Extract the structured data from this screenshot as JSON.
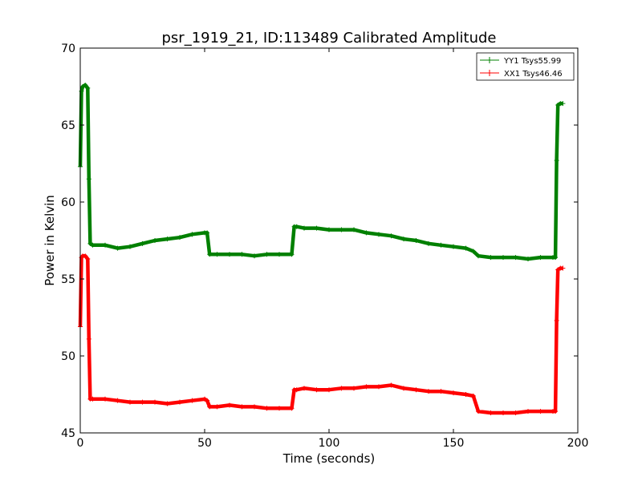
{
  "chart_data": {
    "type": "line",
    "title": "psr_1919_21, ID:113489 Calibrated Amplitude",
    "xlabel": "Time (seconds)",
    "ylabel": "Power in Kelvin",
    "xlim": [
      0,
      200
    ],
    "ylim": [
      45,
      70
    ],
    "xticks": [
      0,
      50,
      100,
      150,
      200
    ],
    "yticks": [
      45,
      50,
      55,
      60,
      65,
      70
    ],
    "grid": false,
    "legend_position": "top-right",
    "series": [
      {
        "name": "YY1 Tsys55.99",
        "color": "#008000",
        "x": [
          0,
          0.5,
          1,
          2,
          3,
          3.5,
          4,
          5,
          10,
          15,
          20,
          25,
          30,
          35,
          40,
          45,
          50,
          51,
          52,
          55,
          60,
          65,
          70,
          75,
          80,
          85,
          86,
          87,
          90,
          95,
          100,
          105,
          110,
          115,
          120,
          125,
          130,
          135,
          140,
          145,
          150,
          155,
          158,
          160,
          165,
          170,
          175,
          180,
          185,
          190,
          191,
          191.5,
          192,
          193,
          194
        ],
        "y": [
          62.3,
          67.2,
          67.5,
          67.6,
          67.4,
          61.5,
          57.3,
          57.2,
          57.2,
          57.0,
          57.1,
          57.3,
          57.5,
          57.6,
          57.7,
          57.9,
          58.0,
          58.0,
          56.6,
          56.6,
          56.6,
          56.6,
          56.5,
          56.6,
          56.6,
          56.6,
          58.4,
          58.4,
          58.3,
          58.3,
          58.2,
          58.2,
          58.2,
          58.0,
          57.9,
          57.8,
          57.6,
          57.5,
          57.3,
          57.2,
          57.1,
          57.0,
          56.8,
          56.5,
          56.4,
          56.4,
          56.4,
          56.3,
          56.4,
          56.4,
          56.4,
          62.7,
          66.3,
          66.4,
          66.4
        ]
      },
      {
        "name": "XX1 Tsys46.46",
        "color": "#ff0000",
        "x": [
          0,
          0.5,
          1,
          2,
          3,
          3.5,
          4,
          5,
          10,
          15,
          20,
          25,
          30,
          35,
          40,
          45,
          50,
          51,
          52,
          55,
          60,
          65,
          70,
          75,
          80,
          85,
          86,
          87,
          90,
          95,
          100,
          105,
          110,
          115,
          120,
          125,
          130,
          135,
          140,
          145,
          150,
          155,
          158,
          160,
          165,
          170,
          175,
          180,
          185,
          190,
          191,
          191.5,
          192,
          193,
          194
        ],
        "y": [
          51.9,
          56.4,
          56.5,
          56.5,
          56.3,
          51.1,
          47.2,
          47.2,
          47.2,
          47.1,
          47.0,
          47.0,
          47.0,
          46.9,
          47.0,
          47.1,
          47.2,
          47.1,
          46.7,
          46.7,
          46.8,
          46.7,
          46.7,
          46.6,
          46.6,
          46.6,
          47.8,
          47.8,
          47.9,
          47.8,
          47.8,
          47.9,
          47.9,
          48.0,
          48.0,
          48.1,
          47.9,
          47.8,
          47.7,
          47.7,
          47.6,
          47.5,
          47.4,
          46.4,
          46.3,
          46.3,
          46.3,
          46.4,
          46.4,
          46.4,
          46.4,
          52.3,
          55.6,
          55.7,
          55.7
        ]
      }
    ]
  }
}
